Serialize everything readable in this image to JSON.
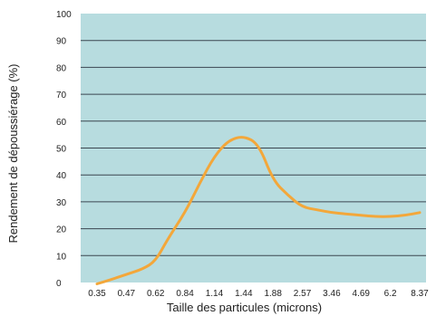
{
  "chart_data": {
    "type": "line",
    "xlabel": "Taille des particules (microns)",
    "ylabel": "Rendement de dépoussiérage (%)",
    "x_tick_labels": [
      "0.35",
      "0.47",
      "0.62",
      "0.84",
      "1.14",
      "1.44",
      "1.88",
      "2.57",
      "3.46",
      "4.69",
      "6.2",
      "8.37"
    ],
    "y_tick_labels": [
      "0",
      "10",
      "20",
      "30",
      "40",
      "50",
      "60",
      "70",
      "80",
      "90",
      "100"
    ],
    "ylim": [
      0,
      100
    ],
    "grid": "horizontal",
    "series": [
      {
        "x": [
          0.35,
          0.4,
          0.47,
          0.55,
          0.62,
          0.7,
          0.84,
          0.98,
          1.14,
          1.28,
          1.44,
          1.65,
          1.88,
          2.2,
          2.57,
          3.0,
          3.46,
          4.0,
          4.69,
          5.4,
          6.2,
          7.2,
          8.37
        ],
        "y": [
          -0.5,
          1.0,
          3.0,
          5.0,
          8.0,
          16.0,
          26.0,
          37.0,
          47.0,
          53.0,
          54.5,
          51.5,
          38.0,
          32.5,
          28.0,
          27.0,
          26.0,
          25.5,
          25.0,
          24.5,
          24.5,
          25.0,
          26.0
        ]
      }
    ],
    "colors": {
      "background": "#b7dcdf",
      "line": "#f3a73a",
      "grid": "#3b4650"
    }
  }
}
